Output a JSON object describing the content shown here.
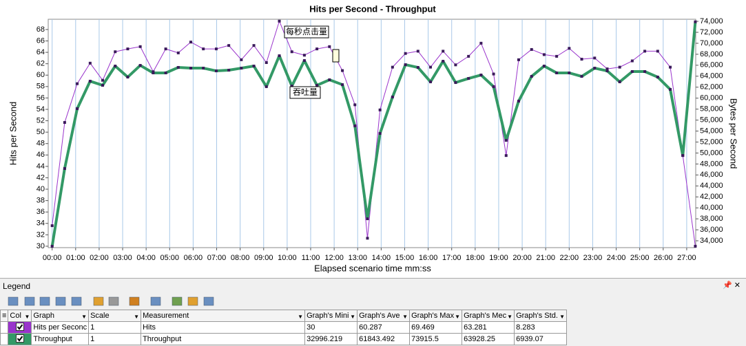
{
  "chart_data": {
    "type": "line",
    "title": "Hits per Second - Throughput",
    "xlabel": "Elapsed scenario time mm:ss",
    "ylabel": "Hits per Second",
    "y2label": "Bytes per Second",
    "x": [
      0,
      32,
      64,
      97,
      129,
      161,
      193,
      225,
      258,
      290,
      322,
      354,
      386,
      419,
      451,
      483,
      515,
      547,
      580,
      612,
      644,
      676,
      708,
      741,
      773,
      805,
      837,
      869,
      902,
      934,
      966,
      998,
      1030,
      1063,
      1095,
      1127,
      1159,
      1191,
      1224,
      1256,
      1288,
      1320,
      1352,
      1385,
      1417,
      1449,
      1481,
      1513,
      1546,
      1578,
      1610,
      1642
    ],
    "series": [
      {
        "name": "每秒点击量",
        "color": "#9933cc",
        "values": [
          33.6,
          51.7,
          58.5,
          62.1,
          59.1,
          64.1,
          64.6,
          65,
          60.6,
          64.6,
          63.9,
          65.8,
          64.6,
          64.6,
          65.2,
          62.7,
          65.2,
          62.2,
          69.47,
          64.1,
          63.5,
          64.6,
          65,
          60.8,
          54.8,
          31.4,
          53.9,
          61.4,
          63.8,
          64.2,
          61.4,
          64.2,
          61.8,
          63.3,
          65.6,
          60.2,
          45.9,
          62.7,
          64.5,
          63.6,
          63.3,
          64.7,
          62.8,
          63,
          61.1,
          61.4,
          62.5,
          64.2,
          64.2,
          61.4,
          45.9,
          30
        ]
      },
      {
        "name": "吞吐量",
        "color": "#339966",
        "axis": "y2",
        "values": [
          32996,
          47170,
          58080,
          63090,
          62340,
          65850,
          63840,
          65970,
          64600,
          64600,
          65600,
          65470,
          65470,
          64970,
          65100,
          65470,
          65850,
          62090,
          67730,
          62210,
          66850,
          62340,
          63340,
          62460,
          54940,
          38010,
          53560,
          60210,
          66100,
          65600,
          62970,
          66730,
          62840,
          63590,
          64220,
          62090,
          52310,
          59460,
          63970,
          65850,
          64600,
          64600,
          63970,
          65470,
          64970,
          62970,
          64850,
          64850,
          63840,
          61590,
          49550,
          73915
        ]
      }
    ],
    "xlim": [
      -10,
      1643
    ],
    "xticks": [
      {
        "value": 0,
        "label": "00:00"
      },
      {
        "value": 60,
        "label": "01:00"
      },
      {
        "value": 120,
        "label": "02:00"
      },
      {
        "value": 180,
        "label": "03:00"
      },
      {
        "value": 240,
        "label": "04:00"
      },
      {
        "value": 300,
        "label": "05:00"
      },
      {
        "value": 360,
        "label": "06:00"
      },
      {
        "value": 420,
        "label": "07:00"
      },
      {
        "value": 480,
        "label": "08:00"
      },
      {
        "value": 540,
        "label": "09:00"
      },
      {
        "value": 600,
        "label": "10:00"
      },
      {
        "value": 660,
        "label": "11:00"
      },
      {
        "value": 720,
        "label": "12:00"
      },
      {
        "value": 780,
        "label": "13:00"
      },
      {
        "value": 840,
        "label": "14:00"
      },
      {
        "value": 900,
        "label": "15:00"
      },
      {
        "value": 960,
        "label": "16:00"
      },
      {
        "value": 1020,
        "label": "17:00"
      },
      {
        "value": 1080,
        "label": "18:00"
      },
      {
        "value": 1140,
        "label": "19:00"
      },
      {
        "value": 1200,
        "label": "20:00"
      },
      {
        "value": 1260,
        "label": "21:00"
      },
      {
        "value": 1320,
        "label": "22:00"
      },
      {
        "value": 1380,
        "label": "23:00"
      },
      {
        "value": 1440,
        "label": "24:00"
      },
      {
        "value": 1500,
        "label": "25:00"
      },
      {
        "value": 1560,
        "label": "26:00"
      },
      {
        "value": 1620,
        "label": "27:00"
      }
    ],
    "ylim": [
      29.75,
      69.8
    ],
    "yticks": [
      30,
      32,
      34,
      36,
      38,
      40,
      42,
      44,
      46,
      48,
      50,
      52,
      54,
      56,
      58,
      60,
      62,
      64,
      66,
      68
    ],
    "y2lim": [
      32750,
      74380
    ],
    "y2ticks": [
      {
        "value": 34000,
        "label": "34,000"
      },
      {
        "value": 36000,
        "label": "36,000"
      },
      {
        "value": 38000,
        "label": "38,000"
      },
      {
        "value": 40000,
        "label": "40,000"
      },
      {
        "value": 42000,
        "label": "42,000"
      },
      {
        "value": 44000,
        "label": "44,000"
      },
      {
        "value": 46000,
        "label": "46,000"
      },
      {
        "value": 48000,
        "label": "48,000"
      },
      {
        "value": 50000,
        "label": "50,000"
      },
      {
        "value": 52000,
        "label": "52,000"
      },
      {
        "value": 54000,
        "label": "54,000"
      },
      {
        "value": 56000,
        "label": "56,000"
      },
      {
        "value": 58000,
        "label": "58,000"
      },
      {
        "value": 60000,
        "label": "60,000"
      },
      {
        "value": 62000,
        "label": "62,000"
      },
      {
        "value": 64000,
        "label": "64,000"
      },
      {
        "value": 66000,
        "label": "66,000"
      },
      {
        "value": 68000,
        "label": "68,000"
      },
      {
        "value": 70000,
        "label": "70,000"
      },
      {
        "value": 72000,
        "label": "72,000"
      },
      {
        "value": 74000,
        "label": "74,000"
      }
    ],
    "grid": true
  },
  "legend": {
    "title": "Legend",
    "columns": [
      "Col",
      "Graph",
      "Scale",
      "Measurement",
      "Graph's Mini",
      "Graph's Ave",
      "Graph's Max",
      "Graph's Mec",
      "Graph's Std."
    ],
    "rows": [
      [
        "Hits per Seconc",
        "1",
        "Hits",
        "30",
        "60.287",
        "69.469",
        "63.281",
        "8.283"
      ],
      [
        "Throughput",
        "1",
        "Throughput",
        "32996.219",
        "61843.492",
        "73915.5",
        "63928.25",
        "6939.07"
      ]
    ]
  }
}
